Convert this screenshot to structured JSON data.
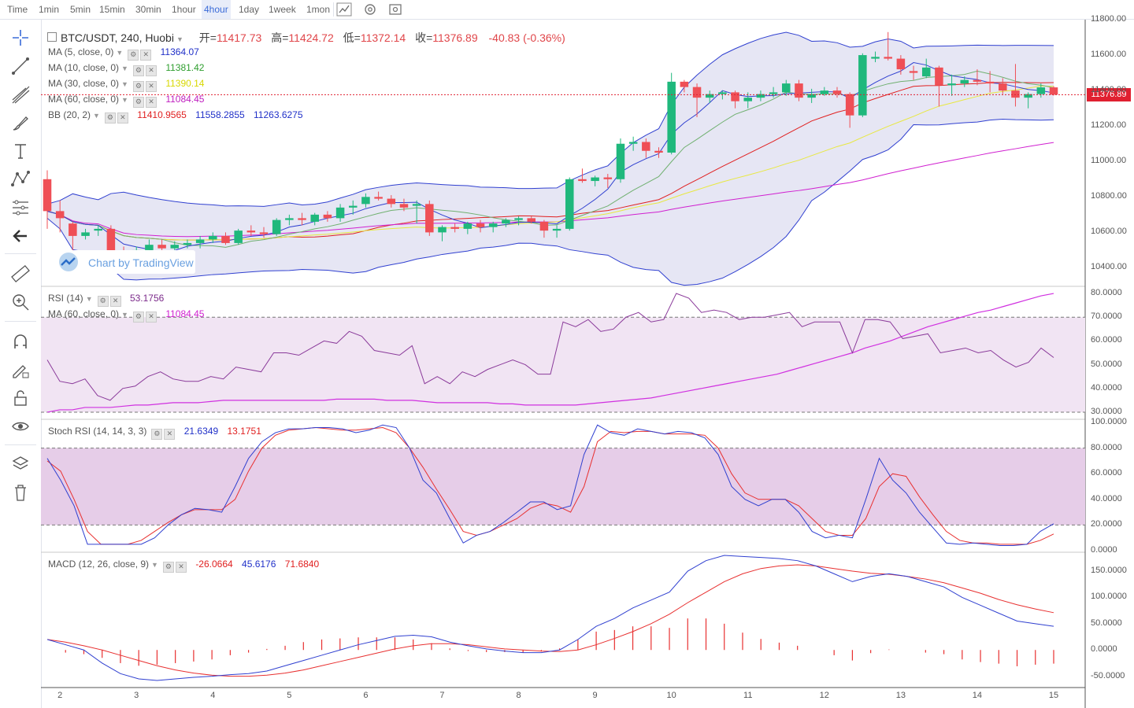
{
  "toolbar": {
    "timeframes": [
      {
        "label": "Time",
        "active": false
      },
      {
        "label": "1min",
        "active": false
      },
      {
        "label": "5min",
        "active": false
      },
      {
        "label": "15min",
        "active": false
      },
      {
        "label": "30min",
        "active": false
      },
      {
        "label": "1hour",
        "active": false
      },
      {
        "label": "4hour",
        "active": true
      },
      {
        "label": "1day",
        "active": false
      },
      {
        "label": "1week",
        "active": false
      },
      {
        "label": "1mon",
        "active": false
      }
    ],
    "icons": [
      "chart-type-icon",
      "settings-icon",
      "screenshot-icon"
    ]
  },
  "left_tools": [
    "crosshair-icon",
    "trendline-icon",
    "fib-icon",
    "brush-icon",
    "text-icon",
    "pattern-icon",
    "measure-icon",
    "back-arrow-icon",
    "ruler-icon",
    "zoom-in-icon",
    "magnet-icon",
    "lock-drawing-icon",
    "unlock-icon",
    "eye-icon",
    "layers-icon",
    "trash-icon"
  ],
  "header": {
    "symbol": "BTC/USDT, 240, Huobi",
    "open_label": "开=",
    "open": "11417.73",
    "high_label": "高=",
    "high": "11424.72",
    "low_label": "低=",
    "low": "11372.14",
    "close_label": "收=",
    "close": "11376.89",
    "change": "-40.83 (-0.36%)"
  },
  "indicators": {
    "ma5": {
      "name": "MA (5, close, 0)",
      "value": "11364.07",
      "color": "#2030c8"
    },
    "ma10": {
      "name": "MA (10, close, 0)",
      "value": "11381.42",
      "color": "#2e9e2e"
    },
    "ma30": {
      "name": "MA (30, close, 0)",
      "value": "11390.14",
      "color": "#e8e800"
    },
    "ma60": {
      "name": "MA (60, close, 0)",
      "value": "11084.45",
      "color": "#c020c0"
    },
    "bb": {
      "name": "BB (20, 2)",
      "basis": "11410.9565",
      "upper": "11558.2855",
      "lower": "11263.6275"
    }
  },
  "watermark": "Chart by TradingView",
  "last_price_tag": "11376.89",
  "rsi": {
    "name": "RSI (14)",
    "value": "53.1756",
    "ma_name": "MA (60, close, 0)",
    "ma_value": "11084.45"
  },
  "stoch": {
    "name": "Stoch RSI (14, 14, 3, 3)",
    "k": "21.6349",
    "d": "13.1751"
  },
  "macd": {
    "name": "MACD (12, 26, close, 9)",
    "hist": "-26.0664",
    "macd": "45.6176",
    "signal": "71.6840"
  },
  "price_axis": [
    "11800.00",
    "11600.00",
    "11400.00",
    "11200.00",
    "11000.00",
    "10800.00",
    "10600.00",
    "10400.00"
  ],
  "rsi_axis": [
    "80.0000",
    "70.0000",
    "60.0000",
    "50.0000",
    "40.0000",
    "30.0000"
  ],
  "stoch_axis": [
    "100.0000",
    "80.0000",
    "60.0000",
    "40.0000",
    "20.0000",
    "0.0000"
  ],
  "macd_axis": [
    "150.0000",
    "100.0000",
    "50.0000",
    "0.0000",
    "-50.0000"
  ],
  "time_axis": [
    "2",
    "3",
    "4",
    "5",
    "6",
    "7",
    "8",
    "9",
    "10",
    "11",
    "12",
    "13",
    "14",
    "15"
  ],
  "chart_data": {
    "type": "candlestick",
    "candles": [
      [
        10900,
        10950,
        10620,
        10720
      ],
      [
        10720,
        10780,
        10600,
        10680
      ],
      [
        10650,
        10660,
        10480,
        10580
      ],
      [
        10580,
        10620,
        10560,
        10600
      ],
      [
        10610,
        10640,
        10580,
        10620
      ],
      [
        10620,
        10640,
        10430,
        10450
      ],
      [
        10450,
        10520,
        10400,
        10420
      ],
      [
        10420,
        10520,
        10400,
        10500
      ],
      [
        10500,
        10560,
        10480,
        10530
      ],
      [
        10530,
        10560,
        10500,
        10510
      ],
      [
        10510,
        10550,
        10480,
        10530
      ],
      [
        10530,
        10560,
        10510,
        10540
      ],
      [
        10540,
        10580,
        10510,
        10560
      ],
      [
        10560,
        10600,
        10540,
        10580
      ],
      [
        10580,
        10600,
        10530,
        10540
      ],
      [
        10540,
        10620,
        10530,
        10610
      ],
      [
        10610,
        10640,
        10580,
        10600
      ],
      [
        10600,
        10630,
        10570,
        10590
      ],
      [
        10590,
        10680,
        10580,
        10670
      ],
      [
        10670,
        10700,
        10640,
        10680
      ],
      [
        10680,
        10710,
        10640,
        10670
      ],
      [
        10660,
        10710,
        10640,
        10700
      ],
      [
        10700,
        10720,
        10660,
        10680
      ],
      [
        10680,
        10760,
        10660,
        10740
      ],
      [
        10740,
        10780,
        10700,
        10750
      ],
      [
        10760,
        10820,
        10740,
        10800
      ],
      [
        10800,
        10830,
        10780,
        10790
      ],
      [
        10790,
        10810,
        10740,
        10760
      ],
      [
        10760,
        10790,
        10720,
        10740
      ],
      [
        10750,
        10780,
        10650,
        10760
      ],
      [
        10760,
        10780,
        10580,
        10600
      ],
      [
        10600,
        10640,
        10550,
        10630
      ],
      [
        10630,
        10650,
        10600,
        10620
      ],
      [
        10620,
        10660,
        10590,
        10650
      ],
      [
        10650,
        10670,
        10600,
        10630
      ],
      [
        10630,
        10660,
        10600,
        10650
      ],
      [
        10650,
        10680,
        10630,
        10670
      ],
      [
        10670,
        10690,
        10640,
        10680
      ],
      [
        10680,
        10690,
        10650,
        10660
      ],
      [
        10660,
        10670,
        10570,
        10610
      ],
      [
        10610,
        10640,
        10570,
        10620
      ],
      [
        10620,
        10910,
        10610,
        10900
      ],
      [
        10900,
        10960,
        10880,
        10890
      ],
      [
        10890,
        10920,
        10860,
        10910
      ],
      [
        10910,
        10930,
        10850,
        10900
      ],
      [
        10900,
        11130,
        10880,
        11100
      ],
      [
        11100,
        11140,
        11060,
        11110
      ],
      [
        11110,
        11130,
        11020,
        11060
      ],
      [
        11060,
        11080,
        11020,
        11050
      ],
      [
        11050,
        11500,
        11040,
        11450
      ],
      [
        11450,
        11460,
        11390,
        11420
      ],
      [
        11420,
        11440,
        11250,
        11360
      ],
      [
        11360,
        11400,
        11330,
        11380
      ],
      [
        11380,
        11400,
        11350,
        11390
      ],
      [
        11390,
        11400,
        11300,
        11340
      ],
      [
        11340,
        11390,
        11300,
        11360
      ],
      [
        11360,
        11400,
        11340,
        11380
      ],
      [
        11380,
        11420,
        11360,
        11390
      ],
      [
        11390,
        11460,
        11370,
        11440
      ],
      [
        11440,
        11460,
        11340,
        11360
      ],
      [
        11360,
        11410,
        11330,
        11380
      ],
      [
        11380,
        11420,
        11370,
        11400
      ],
      [
        11400,
        11420,
        11360,
        11380
      ],
      [
        11380,
        11390,
        11190,
        11260
      ],
      [
        11260,
        11610,
        11250,
        11600
      ],
      [
        11580,
        11620,
        11560,
        11590
      ],
      [
        11590,
        11730,
        11570,
        11580
      ],
      [
        11580,
        11600,
        11490,
        11520
      ],
      [
        11510,
        11540,
        11460,
        11500
      ],
      [
        11480,
        11580,
        11470,
        11530
      ],
      [
        11530,
        11540,
        11310,
        11430
      ],
      [
        11430,
        11490,
        11370,
        11440
      ],
      [
        11440,
        11480,
        11420,
        11460
      ],
      [
        11460,
        11520,
        11430,
        11450
      ],
      [
        11450,
        11510,
        11390,
        11440
      ],
      [
        11440,
        11470,
        11380,
        11400
      ],
      [
        11400,
        11550,
        11310,
        11360
      ],
      [
        11360,
        11390,
        11300,
        11380
      ],
      [
        11380,
        11440,
        11360,
        11418
      ],
      [
        11418,
        11425,
        11372,
        11377
      ]
    ],
    "price_range": [
      10300,
      11800
    ],
    "last_price": 11376.89,
    "day_labels": [
      "2",
      "3",
      "4",
      "5",
      "6",
      "7",
      "8",
      "9",
      "10",
      "11",
      "12",
      "13",
      "14",
      "15"
    ],
    "rsi_range": [
      28,
      82
    ],
    "rsi_band": [
      30,
      70
    ],
    "rsi_values": [
      52,
      43,
      42,
      44,
      37,
      35,
      40,
      41,
      45,
      47,
      44,
      43,
      43,
      45,
      44,
      49,
      48,
      47,
      55,
      55,
      54,
      57,
      60,
      59,
      64,
      62,
      56,
      55,
      54,
      58,
      42,
      45,
      42,
      47,
      45,
      48,
      50,
      52,
      50,
      46,
      46,
      68,
      66,
      69,
      64,
      65,
      70,
      72,
      68,
      69,
      80,
      78,
      72,
      73,
      72,
      69,
      70,
      70,
      71,
      72,
      66,
      68,
      68,
      68,
      55,
      69,
      69,
      68,
      61,
      62,
      63,
      55,
      56,
      57,
      55,
      56,
      52,
      49,
      51,
      57,
      53
    ],
    "rsi_ma_values": [
      30,
      31,
      31,
      32,
      32,
      32,
      32.5,
      33,
      33,
      33.5,
      34,
      34,
      34,
      34.5,
      35,
      35,
      35,
      35,
      35,
      35,
      35,
      35,
      35,
      35.5,
      35.5,
      35.5,
      35.5,
      35,
      35,
      35,
      34.5,
      34,
      34,
      34,
      34,
      34,
      33.5,
      33.5,
      33,
      33,
      33,
      33,
      33,
      33.5,
      34,
      34.5,
      35,
      35.5,
      36,
      37,
      38,
      39,
      40,
      41,
      42,
      43,
      44,
      45,
      46,
      47.5,
      49,
      50.5,
      52,
      53.5,
      55,
      57,
      58.5,
      60,
      62,
      64,
      66,
      67.5,
      69,
      70.5,
      72,
      73,
      74.5,
      76,
      77.5,
      79,
      80
    ],
    "stoch_range": [
      0,
      100
    ],
    "stoch_band": [
      20,
      80
    ],
    "stoch_k": [
      72,
      55,
      35,
      5,
      5,
      5,
      5,
      5,
      10,
      20,
      28,
      33,
      32,
      30,
      50,
      72,
      85,
      92,
      95,
      95,
      96,
      96,
      95,
      92,
      94,
      98,
      96,
      80,
      55,
      45,
      25,
      6,
      12,
      15,
      22,
      30,
      38,
      38,
      32,
      35,
      75,
      98,
      92,
      90,
      95,
      93,
      91,
      93,
      92,
      88,
      75,
      50,
      40,
      35,
      40,
      40,
      30,
      15,
      10,
      12,
      10,
      40,
      72,
      55,
      45,
      30,
      18,
      6,
      5,
      6,
      5,
      4,
      4,
      5,
      15,
      21
    ],
    "stoch_d": [
      70,
      62,
      40,
      15,
      5,
      5,
      5,
      8,
      15,
      22,
      28,
      32,
      32,
      32,
      40,
      62,
      80,
      90,
      94,
      95,
      96,
      95,
      94,
      94,
      95,
      96,
      92,
      80,
      65,
      48,
      32,
      15,
      12,
      15,
      20,
      25,
      33,
      37,
      35,
      30,
      50,
      85,
      93,
      92,
      93,
      93,
      91,
      91,
      91,
      90,
      80,
      60,
      45,
      40,
      40,
      40,
      35,
      25,
      15,
      12,
      12,
      25,
      50,
      60,
      58,
      42,
      28,
      15,
      8,
      6,
      6,
      5,
      5,
      5,
      8,
      13
    ],
    "macd_range": [
      -70,
      180
    ],
    "macd_line": [
      20,
      10,
      0,
      -25,
      -45,
      -55,
      -58,
      -55,
      -52,
      -50,
      -47,
      -45,
      -40,
      -30,
      -20,
      -10,
      0,
      10,
      18,
      26,
      28,
      25,
      15,
      8,
      2,
      -2,
      -5,
      -5,
      0,
      20,
      45,
      60,
      80,
      95,
      110,
      150,
      170,
      180,
      178,
      176,
      174,
      170,
      160,
      145,
      130,
      140,
      145,
      140,
      130,
      120,
      100,
      85,
      70,
      55,
      50,
      45
    ],
    "macd_signal": [
      20,
      15,
      8,
      0,
      -10,
      -20,
      -30,
      -38,
      -44,
      -48,
      -50,
      -50,
      -48,
      -44,
      -38,
      -30,
      -22,
      -14,
      -6,
      2,
      8,
      12,
      12,
      10,
      6,
      2,
      0,
      -2,
      -3,
      0,
      10,
      22,
      35,
      50,
      68,
      90,
      110,
      130,
      145,
      155,
      160,
      162,
      160,
      155,
      150,
      146,
      144,
      140,
      135,
      128,
      118,
      108,
      96,
      86,
      78,
      71
    ],
    "macd_hist": [
      0,
      -5,
      -8,
      -15,
      -25,
      -30,
      -28,
      -25,
      -22,
      -18,
      -10,
      -5,
      2,
      8,
      15,
      20,
      22,
      24,
      24,
      24,
      20,
      13,
      3,
      -2,
      -4,
      -4,
      -5,
      -3,
      3,
      20,
      35,
      38,
      45,
      45,
      42,
      60,
      60,
      50,
      33,
      21,
      14,
      8,
      0,
      -10,
      -20,
      -6,
      1,
      0,
      -5,
      -8,
      -18,
      -23,
      -26,
      -31,
      -28,
      -26
    ]
  }
}
